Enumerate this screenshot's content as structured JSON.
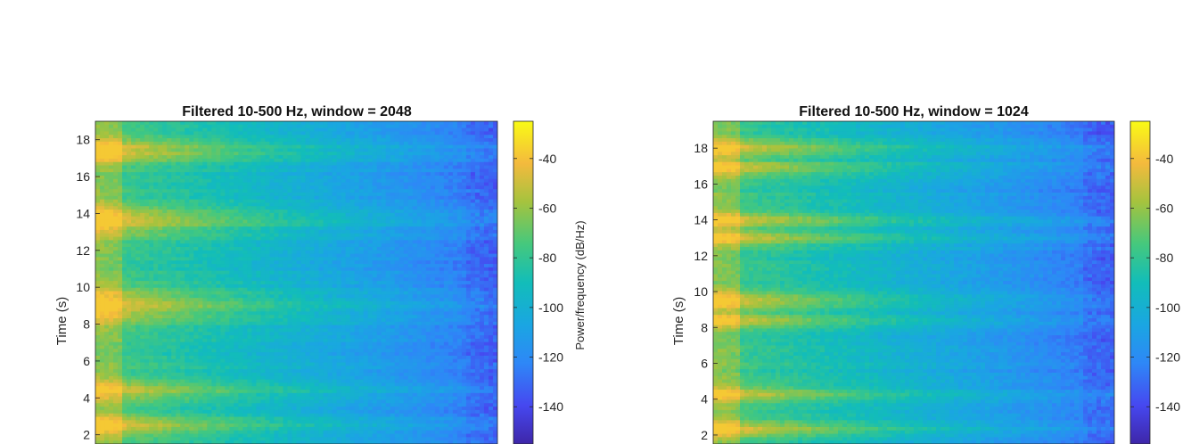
{
  "chart_data": [
    {
      "type": "heatmap",
      "title": "Filtered 10-500 Hz, window = 2048",
      "ylabel": "Time (s)",
      "yticks": [
        2,
        4,
        6,
        8,
        10,
        12,
        14,
        16,
        18
      ],
      "ylim": [
        1.5,
        19.0
      ],
      "xlim": [
        10,
        500
      ],
      "colorbar": {
        "label": "Power/frequency (dB/Hz)",
        "ticks": [
          -140,
          -120,
          -100,
          -80,
          -60,
          -40
        ],
        "clim": [
          -155,
          -25
        ]
      },
      "colormap": "parula",
      "value_range": [
        -150,
        -40
      ],
      "bursts": [
        {
          "t": 2.5,
          "strength": 1.0,
          "width": 0.6
        },
        {
          "t": 4.4,
          "strength": 0.85,
          "width": 0.6
        },
        {
          "t": 9.0,
          "strength": 1.0,
          "width": 0.9
        },
        {
          "t": 13.6,
          "strength": 0.95,
          "width": 0.8
        },
        {
          "t": 17.4,
          "strength": 1.0,
          "width": 0.7
        }
      ]
    },
    {
      "type": "heatmap",
      "title": "Filtered 10-500 Hz, window = 1024",
      "ylabel": "Time (s)",
      "yticks": [
        2,
        4,
        6,
        8,
        10,
        12,
        14,
        16,
        18
      ],
      "ylim": [
        1.5,
        19.5
      ],
      "xlim": [
        10,
        500
      ],
      "colorbar": {
        "label": "",
        "ticks": [
          -140,
          -120,
          -100,
          -80,
          -60,
          -40
        ],
        "clim": [
          -155,
          -25
        ]
      },
      "colormap": "parula",
      "value_range": [
        -150,
        -40
      ],
      "bursts": [
        {
          "t": 2.3,
          "strength": 1.0,
          "width": 0.45
        },
        {
          "t": 4.3,
          "strength": 0.85,
          "width": 0.45
        },
        {
          "t": 8.4,
          "strength": 0.95,
          "width": 0.4
        },
        {
          "t": 9.5,
          "strength": 1.0,
          "width": 0.5
        },
        {
          "t": 13.0,
          "strength": 0.9,
          "width": 0.45
        },
        {
          "t": 14.0,
          "strength": 0.9,
          "width": 0.45
        },
        {
          "t": 16.9,
          "strength": 1.0,
          "width": 0.4
        },
        {
          "t": 18.0,
          "strength": 0.95,
          "width": 0.45
        }
      ]
    }
  ]
}
